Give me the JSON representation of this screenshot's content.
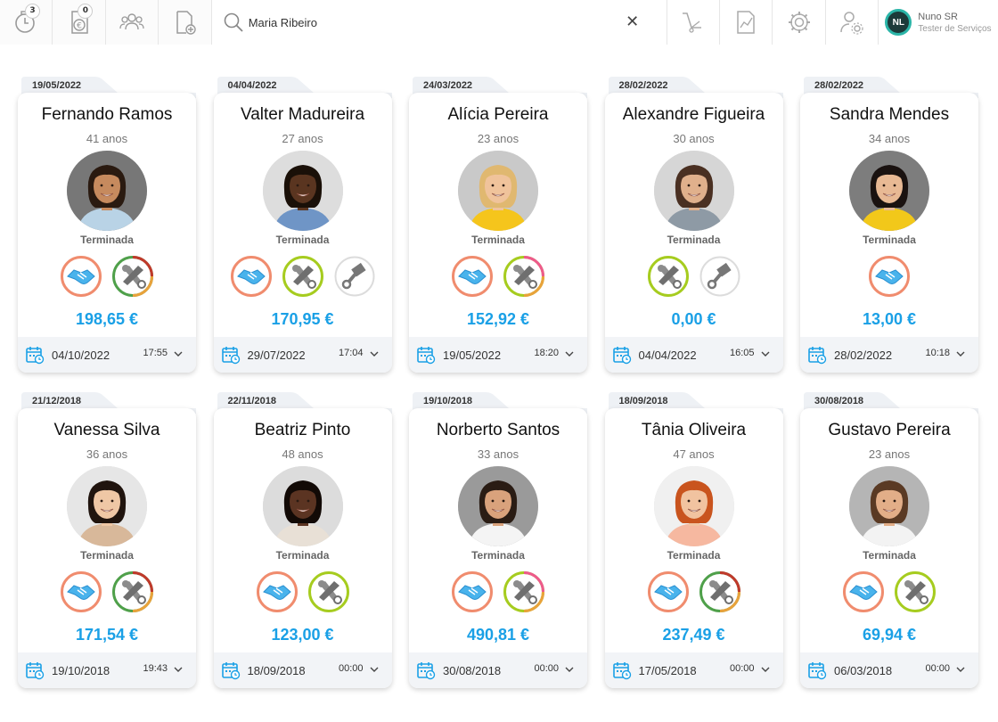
{
  "topbar": {
    "buttons": [
      {
        "icon": "timer-icon",
        "badge": "3"
      },
      {
        "icon": "euro-invoice-icon",
        "badge": "0"
      },
      {
        "icon": "group-icon",
        "badge": null
      },
      {
        "icon": "add-document-icon",
        "badge": null
      }
    ],
    "search": {
      "value": "Maria Ribeiro",
      "clear_icon": "close-icon"
    },
    "right_buttons": [
      "cart-icon",
      "chart-report-icon",
      "gear-icon",
      "user-settings-icon"
    ],
    "user": {
      "initials": "NL",
      "name": "Nuno SR",
      "role": "Tester de Serviços"
    }
  },
  "colors": {
    "accent_blue": "#1aa0e6",
    "service_orange": "#f08c6e",
    "service_green": "#a6cc1f",
    "service_pink": "#ee5a8c",
    "service_red": "#c0392b"
  },
  "cards": [
    {
      "tab_date": "19/05/2022",
      "name": "Fernando Ramos",
      "age": "41 anos",
      "status": "Terminada",
      "amount": "198,65 €",
      "date": "04/10/2022",
      "time": "17:55",
      "services": [
        "handshake",
        "mechanic-redgreen"
      ],
      "photo": {
        "skin": "#c68a5e",
        "hair": "#2a1a10",
        "shirt": "#b9d3e6",
        "bg": "#777777"
      }
    },
    {
      "tab_date": "04/04/2022",
      "name": "Valter Madureira",
      "age": "27 anos",
      "status": "Terminada",
      "amount": "170,95 €",
      "date": "29/07/2022",
      "time": "17:04",
      "services": [
        "handshake",
        "mechanic-green",
        "piston"
      ],
      "photo": {
        "skin": "#5a3520",
        "hair": "#1a1008",
        "shirt": "#6f95c6",
        "bg": "#dddddd"
      }
    },
    {
      "tab_date": "24/03/2022",
      "name": "Alícia Pereira",
      "age": "23 anos",
      "status": "Terminada",
      "amount": "152,92 €",
      "date": "19/05/2022",
      "time": "18:20",
      "services": [
        "handshake",
        "mechanic-pinkgreen"
      ],
      "photo": {
        "skin": "#f0c39b",
        "hair": "#e0b870",
        "shirt": "#f5c51c",
        "bg": "#c9c9c9"
      }
    },
    {
      "tab_date": "28/02/2022",
      "name": "Alexandre Figueira",
      "age": "30 anos",
      "status": "Terminada",
      "amount": "0,00 €",
      "date": "04/04/2022",
      "time": "16:05",
      "services": [
        "mechanic-green",
        "piston"
      ],
      "photo": {
        "skin": "#e0b08c",
        "hair": "#4a3022",
        "shirt": "#8e9aa5",
        "bg": "#d6d6d6"
      }
    },
    {
      "tab_date": "28/02/2022",
      "name": "Sandra Mendes",
      "age": "34 anos",
      "status": "Terminada",
      "amount": "13,00 €",
      "date": "28/02/2022",
      "time": "10:18",
      "services": [
        "handshake"
      ],
      "photo": {
        "skin": "#e8b994",
        "hair": "#1a1210",
        "shirt": "#f2c81a",
        "bg": "#7d7d7d"
      }
    },
    {
      "tab_date": "21/12/2018",
      "name": "Vanessa Silva",
      "age": "36 anos",
      "status": "Terminada",
      "amount": "171,54 €",
      "date": "19/10/2018",
      "time": "19:43",
      "services": [
        "handshake",
        "mechanic-redgreen"
      ],
      "photo": {
        "skin": "#efc7a5",
        "hair": "#20140e",
        "shirt": "#d8b89a",
        "bg": "#e6e6e6"
      }
    },
    {
      "tab_date": "22/11/2018",
      "name": "Beatriz Pinto",
      "age": "48 anos",
      "status": "Terminada",
      "amount": "123,00 €",
      "date": "18/09/2018",
      "time": "00:00",
      "services": [
        "handshake",
        "mechanic-green"
      ],
      "photo": {
        "skin": "#5b3422",
        "hair": "#120a06",
        "shirt": "#e8e0d6",
        "bg": "#dcdcdc"
      }
    },
    {
      "tab_date": "19/10/2018",
      "name": "Norberto Santos",
      "age": "33 anos",
      "status": "Terminada",
      "amount": "490,81 €",
      "date": "30/08/2018",
      "time": "00:00",
      "services": [
        "handshake",
        "mechanic-pinkgreen"
      ],
      "photo": {
        "skin": "#d9a27c",
        "hair": "#2a1c14",
        "shirt": "#f4f4f4",
        "bg": "#9a9a9a"
      }
    },
    {
      "tab_date": "18/09/2018",
      "name": "Tânia Oliveira",
      "age": "47 anos",
      "status": "Terminada",
      "amount": "237,49 €",
      "date": "17/05/2018",
      "time": "00:00",
      "services": [
        "handshake",
        "mechanic-redgreen"
      ],
      "photo": {
        "skin": "#f1c3a0",
        "hair": "#c9541e",
        "shirt": "#f6b8a0",
        "bg": "#f0f0f0"
      }
    },
    {
      "tab_date": "30/08/2018",
      "name": "Gustavo Pereira",
      "age": "23 anos",
      "status": "Terminada",
      "amount": "69,94 €",
      "date": "06/03/2018",
      "time": "00:00",
      "services": [
        "handshake",
        "mechanic-green"
      ],
      "photo": {
        "skin": "#e2ae88",
        "hair": "#5a3a24",
        "shirt": "#f3f3f3",
        "bg": "#b5b5b5"
      }
    }
  ]
}
